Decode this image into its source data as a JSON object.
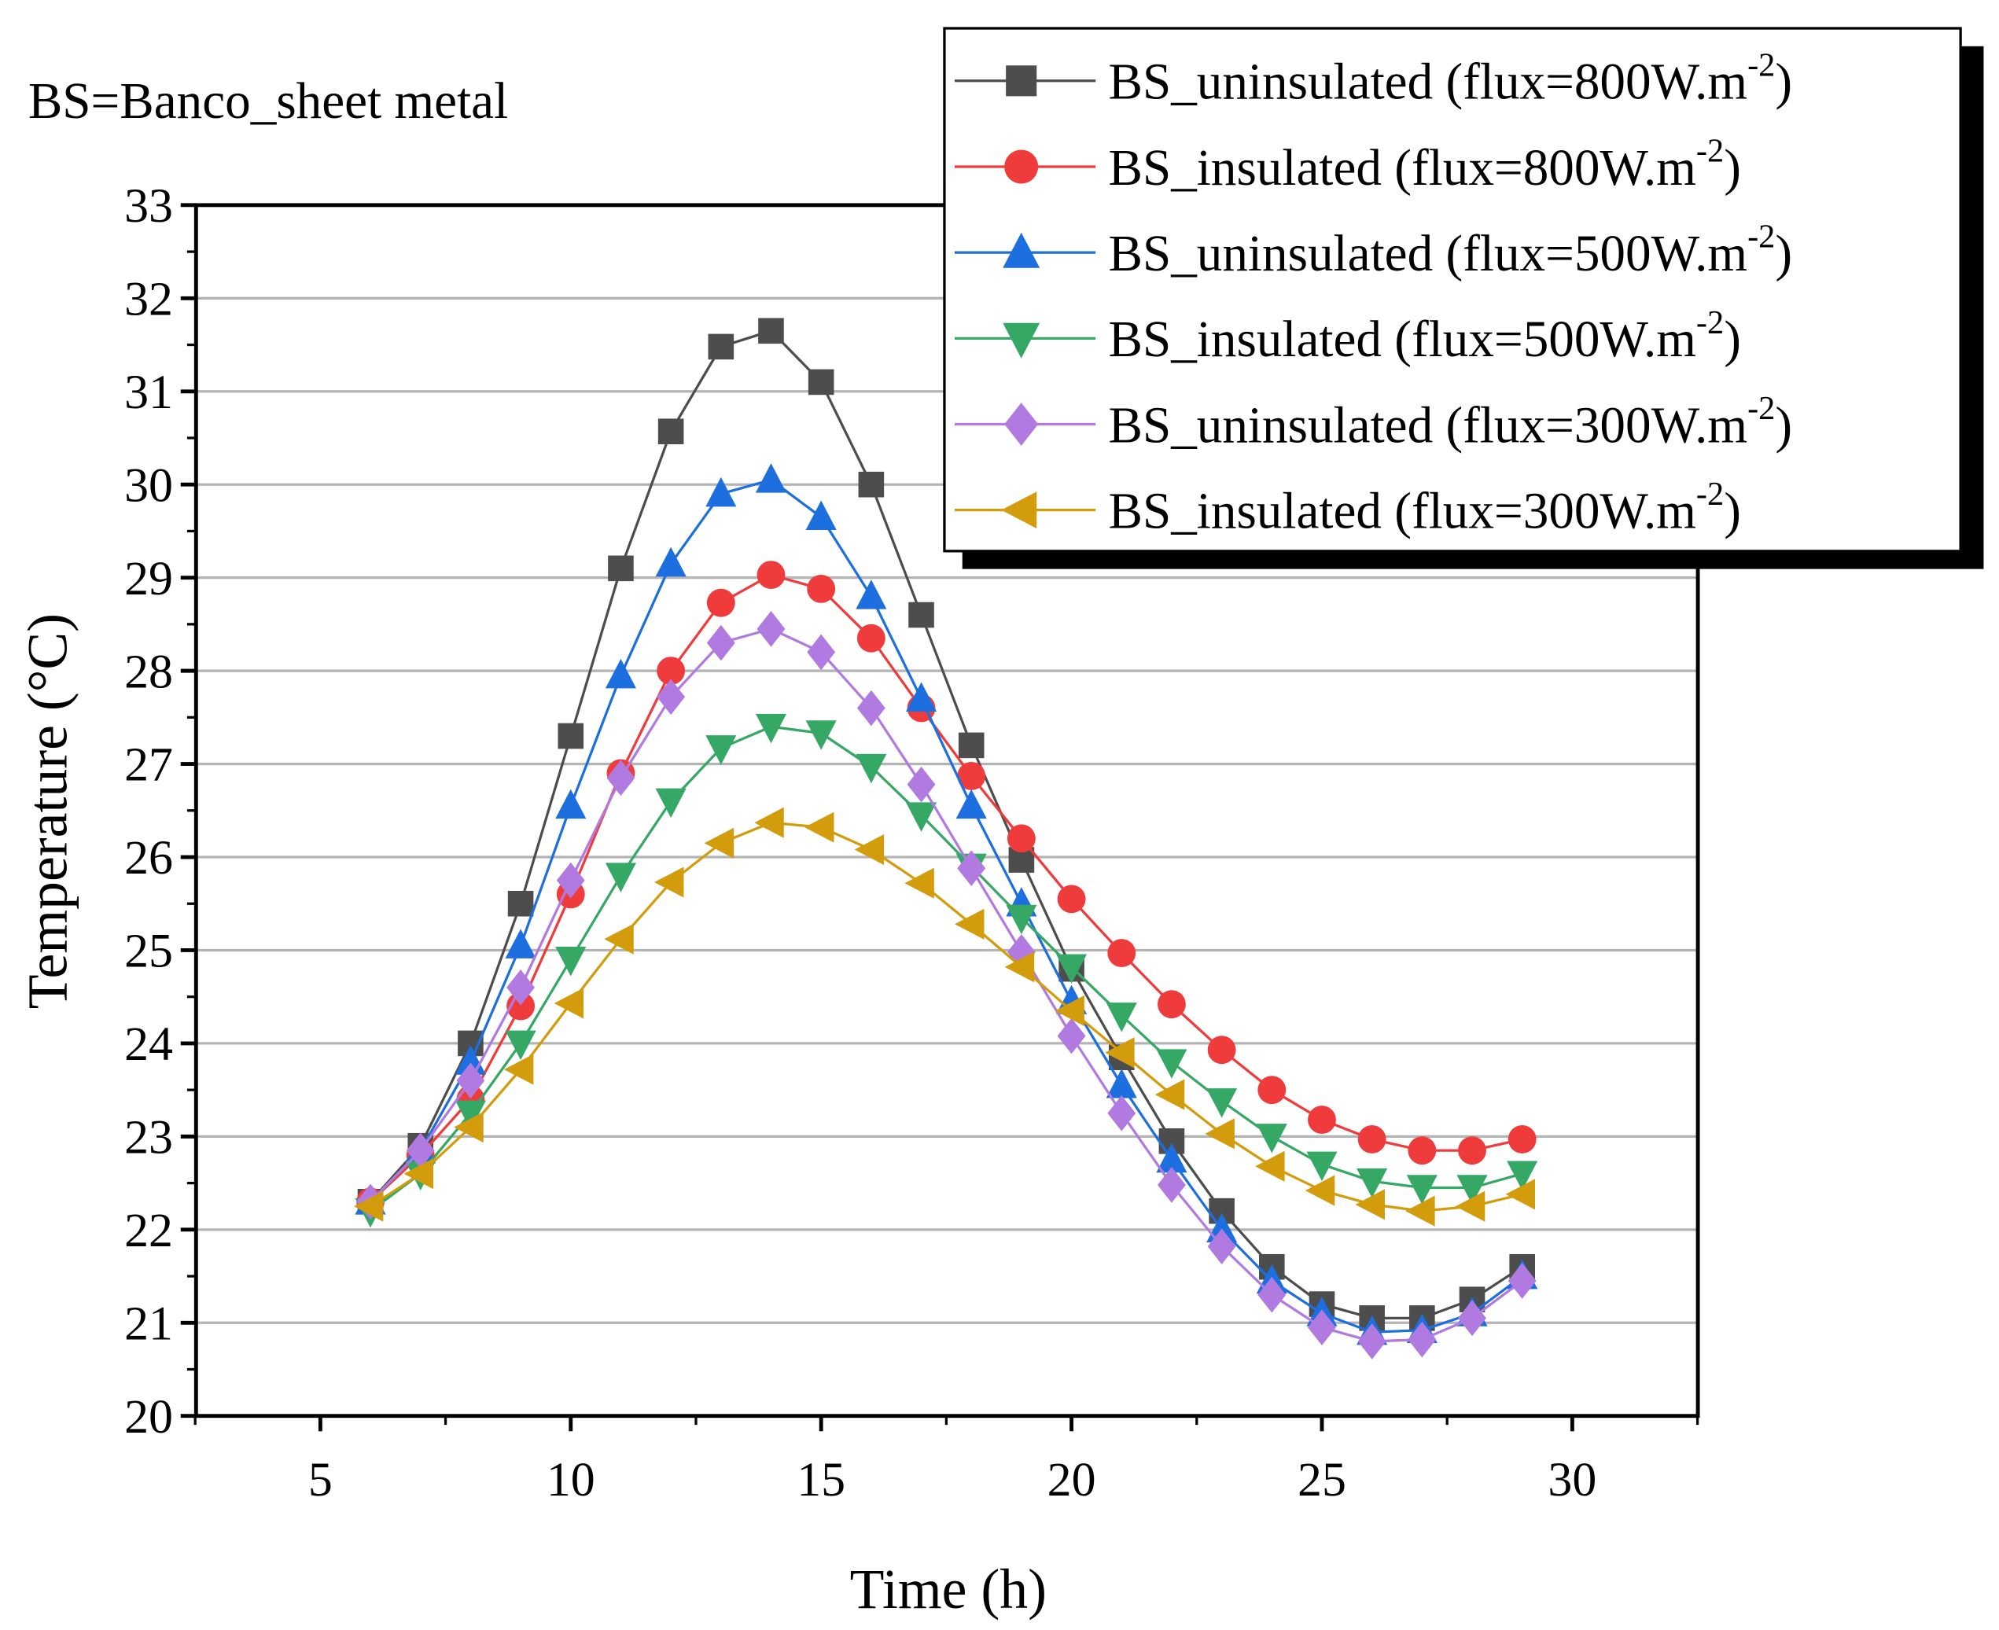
{
  "chart_data": {
    "type": "line",
    "annotation": "BS=Banco_sheet metal",
    "xlabel": "Time (h)",
    "ylabel": "Temperature (°C)",
    "xlim": [
      2.5,
      32.5
    ],
    "ylim": [
      20,
      33
    ],
    "xticks": [
      5,
      10,
      15,
      20,
      25,
      30
    ],
    "yticks": [
      20,
      21,
      22,
      23,
      24,
      25,
      26,
      27,
      28,
      29,
      30,
      31,
      32,
      33
    ],
    "grid": "horizontal",
    "legend_placement": "top-right",
    "x": [
      6,
      7,
      8,
      9,
      10,
      11,
      12,
      13,
      14,
      15,
      16,
      17,
      18,
      19,
      20,
      21,
      22,
      23,
      24,
      25,
      26,
      27,
      28,
      29
    ],
    "series": [
      {
        "name": "BS_uninsulated (flux=800W.m-2)",
        "label_main": "BS_uninsulated (flux=800W.m",
        "label_sup": "-2",
        "label_end": ")",
        "color": "#4d4d4d",
        "marker": "square",
        "values": [
          22.3,
          22.9,
          24.0,
          25.5,
          27.3,
          29.1,
          30.57,
          31.48,
          31.65,
          31.1,
          30.0,
          28.6,
          27.2,
          25.97,
          24.8,
          23.85,
          22.95,
          22.2,
          21.6,
          21.2,
          21.05,
          21.05,
          21.25,
          21.6
        ]
      },
      {
        "name": "BS_insulated (flux=800W.m-2)",
        "label_main": "BS_insulated (flux=800W.m",
        "label_sup": "-2",
        "label_end": ")",
        "color": "#ef3b3b",
        "marker": "circle",
        "values": [
          22.3,
          22.8,
          23.4,
          24.4,
          25.6,
          26.9,
          28.0,
          28.73,
          29.03,
          28.88,
          28.35,
          27.6,
          26.87,
          26.2,
          25.55,
          24.97,
          24.42,
          23.93,
          23.5,
          23.18,
          22.97,
          22.85,
          22.85,
          22.97
        ]
      },
      {
        "name": "BS_uninsulated (flux=500W.m-2)",
        "label_main": "BS_uninsulated (flux=500W.m",
        "label_sup": "-2",
        "label_end": ")",
        "color": "#1d6fe0",
        "marker": "triangle-up",
        "values": [
          22.3,
          22.85,
          23.8,
          25.05,
          26.55,
          27.95,
          29.15,
          29.9,
          30.05,
          29.65,
          28.8,
          27.7,
          26.55,
          25.5,
          24.45,
          23.55,
          22.75,
          22.0,
          21.45,
          21.1,
          20.9,
          20.92,
          21.1,
          21.5
        ]
      },
      {
        "name": "BS_insulated (flux=500W.m-2)",
        "label_main": "BS_insulated (flux=500W.m",
        "label_sup": "-2",
        "label_end": ")",
        "color": "#35a865",
        "marker": "triangle-down",
        "values": [
          22.2,
          22.6,
          23.25,
          24.0,
          24.9,
          25.8,
          26.6,
          27.17,
          27.4,
          27.33,
          26.97,
          26.45,
          25.9,
          25.35,
          24.82,
          24.3,
          23.8,
          23.38,
          23.0,
          22.7,
          22.52,
          22.45,
          22.45,
          22.6
        ]
      },
      {
        "name": "BS_uninsulated (flux=300W.m-2)",
        "label_main": "BS_uninsulated (flux=300W.m",
        "label_sup": "-2",
        "label_end": ")",
        "color": "#b07ae0",
        "marker": "diamond",
        "values": [
          22.3,
          22.85,
          23.6,
          24.6,
          25.75,
          26.85,
          27.72,
          28.3,
          28.45,
          28.2,
          27.6,
          26.78,
          25.88,
          24.98,
          24.08,
          23.25,
          22.48,
          21.82,
          21.3,
          20.95,
          20.8,
          20.82,
          21.05,
          21.45
        ]
      },
      {
        "name": "BS_insulated (flux=300W.m-2)",
        "label_main": "BS_insulated (flux=300W.m",
        "label_sup": "-2",
        "label_end": ")",
        "color": "#d29c0c",
        "marker": "triangle-left",
        "values": [
          22.25,
          22.6,
          23.1,
          23.72,
          24.43,
          25.12,
          25.73,
          26.15,
          26.37,
          26.32,
          26.08,
          25.72,
          25.28,
          24.82,
          24.35,
          23.9,
          23.45,
          23.03,
          22.68,
          22.42,
          22.27,
          22.2,
          22.25,
          22.38
        ]
      }
    ]
  }
}
